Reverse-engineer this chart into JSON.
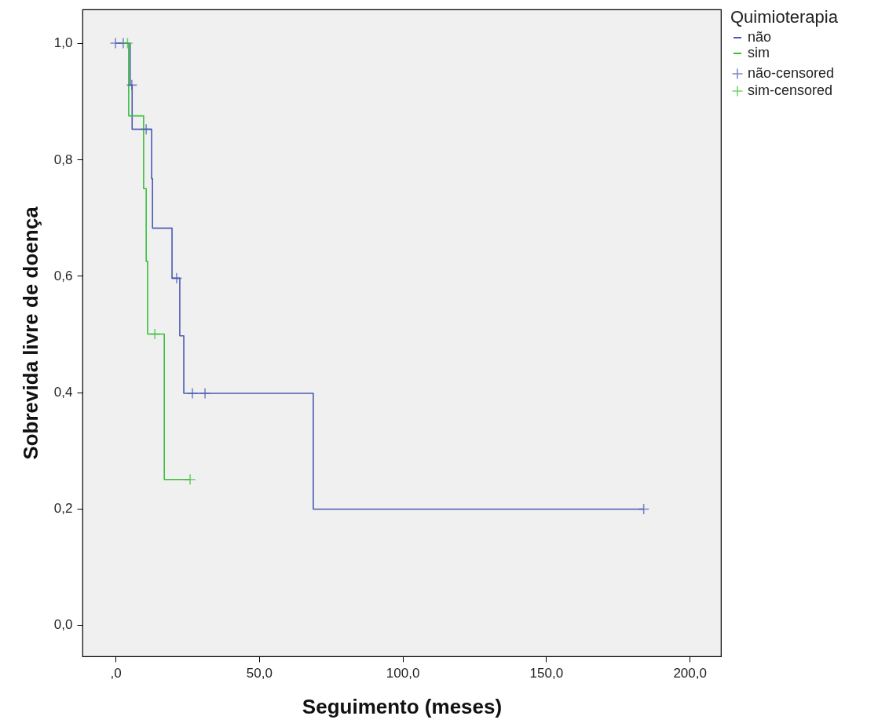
{
  "chart_data": {
    "type": "step",
    "xlabel": "Seguimento (meses)",
    "ylabel": "Sobrevida livre de doença",
    "legend_title": "Quimioterapia",
    "legend": "right",
    "grid": false,
    "xlim": [
      -11.5,
      210.9
    ],
    "xticks": [
      {
        "value": 0,
        "label": ",0"
      },
      {
        "value": 50,
        "label": "50,0"
      },
      {
        "value": 100,
        "label": "100,0"
      },
      {
        "value": 150,
        "label": "150,0"
      },
      {
        "value": 200,
        "label": "200,0"
      }
    ],
    "ylim": [
      -0.054,
      1.058
    ],
    "yticks": [
      {
        "value": 0,
        "label": "0,0"
      },
      {
        "value": 0.2,
        "label": "0,2"
      },
      {
        "value": 0.4,
        "label": "0,4"
      },
      {
        "value": 0.6,
        "label": "0,6"
      },
      {
        "value": 0.8,
        "label": "0,8"
      },
      {
        "value": 1,
        "label": "1,0"
      }
    ],
    "series": [
      {
        "name": "não",
        "color": "#4a5ab4",
        "x": [
          0,
          5.1,
          5.8,
          12.6,
          12.9,
          19.7,
          22.4,
          23.8,
          68.9,
          184
        ],
        "values": [
          1,
          0.928,
          0.852,
          0.767,
          0.682,
          0.596,
          0.497,
          0.398,
          0.199,
          0.199
        ]
      },
      {
        "name": "sim",
        "color": "#3cbf3c",
        "x": [
          3,
          4.6,
          9.8,
          10.7,
          11.2,
          17,
          26
        ],
        "values": [
          1,
          0.875,
          0.75,
          0.625,
          0.5,
          0.25,
          0.25
        ]
      },
      {
        "name": "não-censored",
        "color": "#4a5ab4",
        "type": "scatter",
        "marker": "cross",
        "x": [
          0,
          2.7,
          5.7,
          10.7,
          21.3,
          26.8,
          31.2,
          184
        ],
        "values": [
          1,
          1,
          0.928,
          0.852,
          0.596,
          0.398,
          0.398,
          0.199
        ]
      },
      {
        "name": "sim-censored",
        "color": "#3cbf3c",
        "type": "scatter",
        "marker": "cross",
        "x": [
          4.2,
          13.7,
          26
        ],
        "values": [
          1,
          0.5,
          0.25
        ]
      }
    ]
  }
}
